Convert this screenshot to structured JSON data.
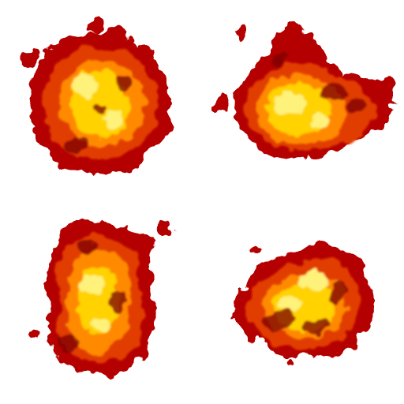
{
  "spritesheet": {
    "columns": 2,
    "rows": 2,
    "frames": [
      {
        "name": "fire-cloud-sprite-1",
        "icon": "fire-cloud-icon"
      },
      {
        "name": "fire-cloud-sprite-2",
        "icon": "fire-cloud-icon"
      },
      {
        "name": "fire-cloud-sprite-3",
        "icon": "fire-cloud-icon"
      },
      {
        "name": "fire-cloud-sprite-4",
        "icon": "fire-cloud-icon"
      }
    ]
  },
  "colors": {
    "background": "#ffffff",
    "outer": "#b40000",
    "mid": "#e23c00",
    "inner": "#ff8a00",
    "hot": "#ffd200",
    "core": "#fff27a",
    "smoke": "#7a0000"
  }
}
